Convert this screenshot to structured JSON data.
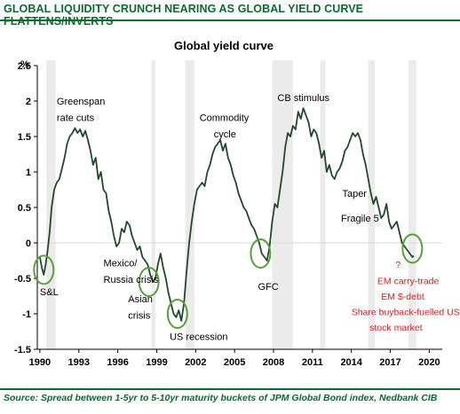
{
  "header": {
    "title": "GLOBAL LIQUIDITY CRUNCH NEARING AS GLOBAL YIELD CURVE FLATTENS/INVERTS"
  },
  "footer": {
    "source": "Source: Spread between 1-5yr to 5-10yr maturity buckets of JPM Global Bond index, Nedbank CIB"
  },
  "colors": {
    "brand_green": "#0a6b2e",
    "series": "#1f4a2a",
    "circle": "#5a9e3a",
    "red_text": "#e31b1b",
    "shade": "#ebebeb"
  },
  "chart_data": {
    "type": "line",
    "title": "Global yield curve",
    "ylabel": "%",
    "xlabel": "",
    "ylim": [
      -1.5,
      2.5
    ],
    "xlim": [
      1989.8,
      2021
    ],
    "yticks": [
      "2.5",
      "2",
      "1.5",
      "1",
      "0.5",
      "0",
      "-0.5",
      "-1",
      "-1.5"
    ],
    "ytick_values": [
      2.5,
      2,
      1.5,
      1,
      0.5,
      0,
      -0.5,
      -1,
      -1.5
    ],
    "xticks": [
      "1990",
      "1993",
      "1996",
      "1999",
      "2002",
      "2005",
      "2008",
      "2011",
      "2014",
      "2017",
      "2020"
    ],
    "xtick_values": [
      1990,
      1993,
      1996,
      1999,
      2002,
      2005,
      2008,
      2011,
      2014,
      2017,
      2020
    ],
    "recessions": [
      [
        1990.5,
        1991.2
      ],
      [
        1998.6,
        1998.9
      ],
      [
        2001.2,
        2001.9
      ],
      [
        2007.9,
        2009.5
      ],
      [
        2011.6,
        2012.0
      ],
      [
        2015.3,
        2015.8
      ],
      [
        2018.4,
        2019.0
      ]
    ],
    "series": [
      {
        "x": [
          1990.0,
          1990.15,
          1990.3,
          1990.45,
          1990.6,
          1990.75,
          1990.9,
          1991.1,
          1991.3,
          1991.5,
          1991.7,
          1991.9,
          1992.1,
          1992.3,
          1992.5,
          1992.7,
          1992.9,
          1993.1,
          1993.3,
          1993.5,
          1993.7,
          1993.9,
          1994.1,
          1994.3,
          1994.5,
          1994.7,
          1994.9,
          1995.1,
          1995.3,
          1995.5,
          1995.7,
          1995.9,
          1996.1,
          1996.3,
          1996.5,
          1996.7,
          1996.9,
          1997.1,
          1997.3,
          1997.5,
          1997.7,
          1997.9,
          1998.1,
          1998.3,
          1998.5,
          1998.7,
          1998.9,
          1999.1,
          1999.3,
          1999.5,
          1999.7,
          1999.9,
          2000.1,
          2000.3,
          2000.5,
          2000.7,
          2000.9,
          2001.1,
          2001.3,
          2001.5,
          2001.7,
          2001.9,
          2002.1,
          2002.3,
          2002.5,
          2002.7,
          2002.9,
          2003.1,
          2003.3,
          2003.5,
          2003.7,
          2003.9,
          2004.1,
          2004.3,
          2004.5,
          2004.7,
          2004.9,
          2005.1,
          2005.3,
          2005.5,
          2005.7,
          2005.9,
          2006.1,
          2006.3,
          2006.5,
          2006.7,
          2006.9,
          2007.1,
          2007.3,
          2007.5,
          2007.7,
          2007.9,
          2008.1,
          2008.3,
          2008.5,
          2008.7,
          2008.9,
          2009.1,
          2009.3,
          2009.5,
          2009.7,
          2009.9,
          2010.1,
          2010.3,
          2010.5,
          2010.7,
          2010.9,
          2011.1,
          2011.3,
          2011.5,
          2011.7,
          2011.9,
          2012.1,
          2012.3,
          2012.5,
          2012.7,
          2012.9,
          2013.1,
          2013.3,
          2013.5,
          2013.7,
          2013.9,
          2014.1,
          2014.3,
          2014.5,
          2014.7,
          2014.9,
          2015.1,
          2015.3,
          2015.5,
          2015.7,
          2015.9,
          2016.1,
          2016.3,
          2016.5,
          2016.7,
          2016.9,
          2017.1,
          2017.3,
          2017.5,
          2017.7,
          2017.9,
          2018.1,
          2018.3,
          2018.5,
          2018.7,
          2018.8
        ],
        "y": [
          -0.2,
          -0.35,
          -0.45,
          -0.3,
          -0.1,
          0.15,
          0.5,
          0.75,
          0.85,
          0.9,
          1.05,
          1.2,
          1.4,
          1.5,
          1.55,
          1.62,
          1.55,
          1.6,
          1.5,
          1.58,
          1.45,
          1.3,
          1.1,
          1.2,
          0.9,
          1.0,
          0.75,
          0.7,
          0.45,
          0.3,
          0.1,
          -0.05,
          0.0,
          0.2,
          0.15,
          0.3,
          0.25,
          0.1,
          0.0,
          -0.1,
          -0.05,
          -0.2,
          -0.25,
          -0.3,
          -0.45,
          -0.55,
          -0.5,
          -0.3,
          -0.15,
          -0.35,
          -0.5,
          -0.7,
          -0.85,
          -1.0,
          -1.05,
          -0.95,
          -1.1,
          -0.85,
          -0.4,
          0.0,
          0.3,
          0.55,
          0.75,
          0.8,
          0.85,
          0.8,
          1.0,
          1.1,
          1.25,
          1.35,
          1.4,
          1.45,
          1.3,
          1.4,
          1.2,
          1.1,
          0.95,
          0.85,
          0.7,
          0.6,
          0.5,
          0.45,
          0.35,
          0.25,
          0.2,
          0.1,
          0.0,
          -0.15,
          -0.2,
          -0.25,
          -0.05,
          0.3,
          0.55,
          0.5,
          0.75,
          1.0,
          1.35,
          1.55,
          1.5,
          1.65,
          1.6,
          1.85,
          1.75,
          1.9,
          1.8,
          1.7,
          1.5,
          1.6,
          1.55,
          1.4,
          1.2,
          1.3,
          1.0,
          1.1,
          0.95,
          0.9,
          1.0,
          1.05,
          1.15,
          1.3,
          1.35,
          1.45,
          1.55,
          1.5,
          1.55,
          1.45,
          1.25,
          1.1,
          0.9,
          0.7,
          0.55,
          0.65,
          0.5,
          0.35,
          0.4,
          0.55,
          0.3,
          0.2,
          0.25,
          0.3,
          0.15,
          0.0,
          -0.05,
          -0.1,
          -0.15,
          -0.2,
          -0.18
        ]
      }
    ],
    "annotations": [
      {
        "text": "Greenspan",
        "x": 1991.3,
        "y": 1.95
      },
      {
        "text": "rate cuts",
        "x": 1991.3,
        "y": 1.72
      },
      {
        "text": "Commodity",
        "x": 2002.3,
        "y": 1.72
      },
      {
        "text": "cycle",
        "x": 2003.4,
        "y": 1.49
      },
      {
        "text": "CB stimulus",
        "x": 2008.3,
        "y": 2.0
      },
      {
        "text": "Taper",
        "x": 2013.3,
        "y": 0.65
      },
      {
        "text": "Fragile 5",
        "x": 2013.2,
        "y": 0.3
      },
      {
        "text": "Mexico/",
        "x": 1994.9,
        "y": -0.33
      },
      {
        "text": "Russia crisis",
        "x": 1994.9,
        "y": -0.56
      },
      {
        "text": "Asian",
        "x": 1996.8,
        "y": -0.84
      },
      {
        "text": "crisis",
        "x": 1996.8,
        "y": -1.07
      },
      {
        "text": "S&L",
        "x": 1990.0,
        "y": -0.74
      },
      {
        "text": "US recession",
        "x": 2000.0,
        "y": -1.37
      },
      {
        "text": "GFC",
        "x": 2006.8,
        "y": -0.66
      }
    ],
    "red_annotations": [
      {
        "text": "?",
        "x": 2017.4,
        "y": -0.35
      },
      {
        "text": "EM carry-trade",
        "x": 2016.0,
        "y": -0.58
      },
      {
        "text": "EM $-debt",
        "x": 2016.3,
        "y": -0.8
      },
      {
        "text": "Share buyback-fuelled US",
        "x": 2014.0,
        "y": -1.02
      },
      {
        "text": "stock market",
        "x": 2015.4,
        "y": -1.24
      }
    ],
    "circles": [
      [
        1990.3,
        -0.38
      ],
      [
        1998.4,
        -0.55
      ],
      [
        2000.6,
        -1.0
      ],
      [
        2007.0,
        -0.15
      ],
      [
        2018.7,
        -0.08
      ]
    ]
  }
}
